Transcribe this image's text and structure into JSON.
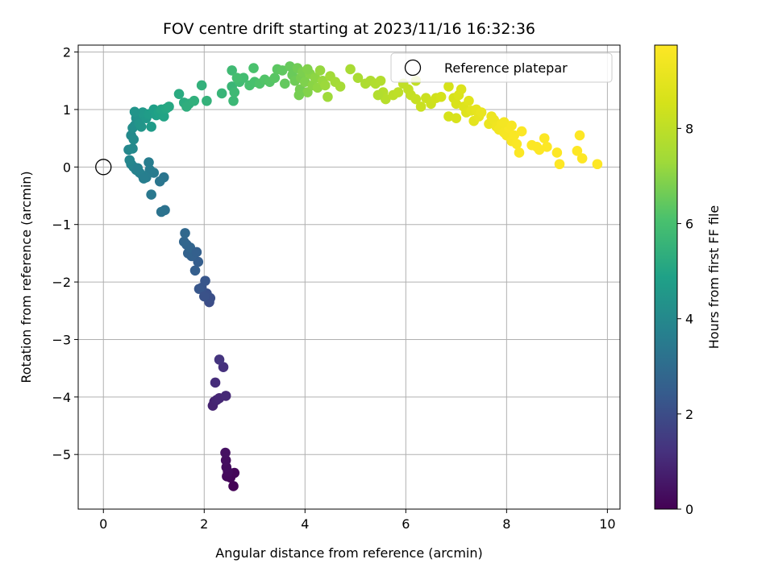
{
  "chart_data": {
    "type": "scatter",
    "title": "FOV centre drift starting at 2023/11/16 16:32:36",
    "xlabel": "Angular distance from reference (arcmin)",
    "ylabel": "Rotation from reference (arcmin)",
    "xlim": [
      -0.5,
      10.25
    ],
    "ylim": [
      -5.95,
      2.12
    ],
    "xticks": [
      0,
      2,
      4,
      6,
      8,
      10
    ],
    "yticks": [
      -5,
      -4,
      -3,
      -2,
      -1,
      0,
      1,
      2
    ],
    "grid": true,
    "colormap": "viridis",
    "colorbar": {
      "label": "Hours from first FF file",
      "range": [
        0,
        9.75
      ],
      "ticks": [
        0,
        2,
        4,
        6,
        8
      ]
    },
    "legend": {
      "placement": "top-right",
      "entries": [
        "Reference platepar"
      ]
    },
    "reference_point": {
      "name": "Reference platepar",
      "x": 0,
      "y": 0
    },
    "series": [
      {
        "points": [
          [
            2.58,
            -5.55,
            0.05
          ],
          [
            2.52,
            -5.4,
            0.12
          ],
          [
            2.6,
            -5.32,
            0.15
          ],
          [
            2.45,
            -5.38,
            0.2
          ],
          [
            2.47,
            -5.3,
            0.25
          ],
          [
            2.44,
            -5.22,
            0.3
          ],
          [
            2.43,
            -5.1,
            0.35
          ],
          [
            2.42,
            -4.97,
            0.4
          ],
          [
            2.2,
            -4.08,
            0.8
          ],
          [
            2.17,
            -4.15,
            0.85
          ],
          [
            2.25,
            -4.05,
            0.9
          ],
          [
            2.3,
            -4.02,
            0.95
          ],
          [
            2.43,
            -3.98,
            1.0
          ],
          [
            2.22,
            -3.75,
            1.1
          ],
          [
            2.38,
            -3.48,
            1.2
          ],
          [
            2.3,
            -3.35,
            1.3
          ],
          [
            2.1,
            -2.35,
            2.0
          ],
          [
            2.12,
            -2.28,
            2.05
          ],
          [
            2.05,
            -2.2,
            2.1
          ],
          [
            1.95,
            -2.1,
            2.2
          ],
          [
            2.02,
            -1.98,
            2.25
          ],
          [
            1.9,
            -2.12,
            2.3
          ],
          [
            2.0,
            -2.25,
            2.15
          ],
          [
            1.88,
            -1.65,
            2.5
          ],
          [
            1.82,
            -1.8,
            2.55
          ],
          [
            1.75,
            -1.55,
            2.6
          ],
          [
            1.68,
            -1.5,
            2.65
          ],
          [
            1.65,
            -1.35,
            2.7
          ],
          [
            1.72,
            -1.4,
            2.75
          ],
          [
            1.6,
            -1.3,
            2.8
          ],
          [
            1.62,
            -1.15,
            2.85
          ],
          [
            1.85,
            -1.48,
            2.58
          ],
          [
            1.22,
            -0.75,
            3.2
          ],
          [
            1.15,
            -0.78,
            3.25
          ],
          [
            1.2,
            -0.18,
            3.3
          ],
          [
            1.12,
            -0.25,
            3.35
          ],
          [
            0.95,
            -0.48,
            3.4
          ],
          [
            1.0,
            -0.1,
            3.5
          ],
          [
            0.92,
            -0.05,
            3.55
          ],
          [
            0.85,
            -0.18,
            3.6
          ],
          [
            0.78,
            -0.15,
            3.65
          ],
          [
            0.72,
            -0.1,
            3.7
          ],
          [
            0.65,
            -0.05,
            3.75
          ],
          [
            0.6,
            0.0,
            3.8
          ],
          [
            0.55,
            0.05,
            3.85
          ],
          [
            0.68,
            -0.02,
            3.72
          ],
          [
            0.9,
            0.08,
            3.58
          ],
          [
            0.8,
            -0.2,
            3.62
          ],
          [
            0.52,
            0.12,
            3.9
          ],
          [
            0.5,
            0.3,
            3.95
          ],
          [
            0.58,
            0.32,
            4.0
          ],
          [
            0.55,
            0.55,
            4.05
          ],
          [
            0.6,
            0.48,
            4.1
          ],
          [
            0.58,
            0.68,
            4.15
          ],
          [
            0.62,
            0.72,
            4.2
          ],
          [
            0.65,
            0.85,
            4.25
          ],
          [
            0.7,
            0.8,
            4.3
          ],
          [
            0.68,
            0.92,
            4.35
          ],
          [
            0.72,
            0.75,
            4.4
          ],
          [
            0.75,
            0.7,
            4.45
          ],
          [
            0.8,
            0.9,
            4.5
          ],
          [
            0.85,
            0.85,
            4.55
          ],
          [
            0.78,
            0.95,
            4.6
          ],
          [
            0.95,
            0.7,
            4.65
          ],
          [
            0.9,
            0.92,
            4.7
          ],
          [
            0.62,
            0.96,
            4.4
          ],
          [
            1.0,
            1.0,
            4.8
          ],
          [
            1.05,
            0.9,
            4.85
          ],
          [
            1.1,
            0.95,
            4.9
          ],
          [
            1.2,
            0.88,
            4.95
          ],
          [
            1.15,
            1.0,
            5.0
          ],
          [
            1.25,
            1.02,
            5.05
          ],
          [
            1.3,
            1.05,
            5.1
          ],
          [
            1.5,
            1.27,
            5.2
          ],
          [
            1.6,
            1.12,
            5.25
          ],
          [
            1.7,
            1.1,
            5.3
          ],
          [
            1.65,
            1.05,
            5.35
          ],
          [
            1.8,
            1.15,
            5.4
          ],
          [
            1.95,
            1.42,
            5.45
          ],
          [
            2.05,
            1.15,
            5.5
          ],
          [
            2.35,
            1.28,
            5.6
          ],
          [
            2.55,
            1.4,
            5.65
          ],
          [
            2.58,
            1.15,
            5.7
          ],
          [
            2.6,
            1.3,
            5.75
          ],
          [
            2.55,
            1.68,
            5.8
          ],
          [
            2.7,
            1.48,
            5.85
          ],
          [
            2.78,
            1.55,
            5.9
          ],
          [
            2.65,
            1.55,
            5.95
          ],
          [
            2.9,
            1.42,
            6.0
          ],
          [
            3.0,
            1.48,
            6.05
          ],
          [
            2.98,
            1.72,
            6.1
          ],
          [
            3.1,
            1.45,
            6.15
          ],
          [
            3.2,
            1.52,
            6.2
          ],
          [
            3.3,
            1.48,
            6.25
          ],
          [
            3.4,
            1.55,
            6.3
          ],
          [
            3.45,
            1.7,
            6.35
          ],
          [
            3.55,
            1.68,
            6.4
          ],
          [
            3.6,
            1.45,
            6.45
          ],
          [
            3.7,
            1.75,
            6.5
          ],
          [
            3.75,
            1.6,
            6.55
          ],
          [
            3.8,
            1.5,
            6.6
          ],
          [
            3.85,
            1.72,
            6.65
          ],
          [
            3.9,
            1.35,
            6.7
          ],
          [
            3.92,
            1.55,
            6.75
          ],
          [
            3.95,
            1.65,
            6.8
          ],
          [
            4.0,
            1.48,
            6.85
          ],
          [
            4.05,
            1.3,
            6.9
          ],
          [
            4.1,
            1.62,
            6.95
          ],
          [
            4.15,
            1.42,
            7.0
          ],
          [
            4.2,
            1.55,
            7.05
          ],
          [
            4.25,
            1.38,
            7.1
          ],
          [
            4.3,
            1.68,
            7.15
          ],
          [
            4.35,
            1.5,
            7.2
          ],
          [
            4.4,
            1.42,
            7.25
          ],
          [
            4.45,
            1.22,
            7.3
          ],
          [
            4.5,
            1.58,
            7.35
          ],
          [
            4.6,
            1.48,
            7.4
          ],
          [
            3.88,
            1.25,
            6.72
          ],
          [
            4.05,
            1.7,
            6.88
          ],
          [
            4.7,
            1.4,
            7.45
          ],
          [
            4.9,
            1.7,
            7.5
          ],
          [
            5.05,
            1.55,
            7.55
          ],
          [
            5.2,
            1.45,
            7.6
          ],
          [
            5.3,
            1.5,
            7.65
          ],
          [
            5.4,
            1.45,
            7.7
          ],
          [
            5.5,
            1.5,
            7.75
          ],
          [
            5.55,
            1.3,
            7.8
          ],
          [
            5.6,
            1.18,
            7.85
          ],
          [
            5.45,
            1.25,
            7.72
          ],
          [
            5.75,
            1.25,
            7.95
          ],
          [
            5.85,
            1.3,
            8.0
          ],
          [
            5.95,
            1.45,
            8.05
          ],
          [
            6.05,
            1.35,
            8.1
          ],
          [
            6.1,
            1.25,
            8.15
          ],
          [
            6.2,
            1.18,
            8.2
          ],
          [
            6.3,
            1.05,
            8.25
          ],
          [
            6.4,
            1.2,
            8.3
          ],
          [
            6.5,
            1.1,
            8.35
          ],
          [
            6.2,
            1.5,
            8.1
          ],
          [
            6.6,
            1.2,
            8.45
          ],
          [
            6.7,
            1.22,
            8.5
          ],
          [
            6.85,
            1.4,
            8.55
          ],
          [
            6.95,
            1.2,
            8.6
          ],
          [
            7.0,
            1.1,
            8.65
          ],
          [
            7.05,
            1.25,
            8.7
          ],
          [
            7.1,
            1.35,
            8.75
          ],
          [
            7.15,
            1.05,
            8.8
          ],
          [
            7.2,
            0.95,
            8.85
          ],
          [
            7.25,
            1.15,
            8.9
          ],
          [
            7.3,
            0.98,
            8.95
          ],
          [
            7.35,
            0.8,
            9.0
          ],
          [
            7.4,
            1.0,
            9.05
          ],
          [
            7.45,
            0.88,
            9.1
          ],
          [
            7.5,
            0.95,
            9.15
          ],
          [
            6.85,
            0.88,
            8.55
          ],
          [
            7.0,
            0.85,
            8.62
          ],
          [
            7.65,
            0.75,
            9.2
          ],
          [
            7.7,
            0.88,
            9.25
          ],
          [
            7.75,
            0.82,
            9.3
          ],
          [
            7.8,
            0.7,
            9.35
          ],
          [
            7.85,
            0.65,
            9.4
          ],
          [
            7.9,
            0.75,
            9.45
          ],
          [
            7.95,
            0.6,
            9.5
          ],
          [
            8.0,
            0.55,
            9.55
          ],
          [
            8.05,
            0.68,
            9.6
          ],
          [
            8.1,
            0.45,
            9.62
          ],
          [
            8.15,
            0.55,
            9.64
          ],
          [
            8.2,
            0.4,
            9.66
          ],
          [
            8.25,
            0.25,
            9.68
          ],
          [
            8.3,
            0.62,
            9.7
          ],
          [
            7.95,
            0.78,
            9.48
          ],
          [
            8.1,
            0.72,
            9.58
          ],
          [
            8.5,
            0.38,
            9.72
          ],
          [
            8.65,
            0.3,
            9.72
          ],
          [
            8.6,
            0.35,
            9.72
          ],
          [
            8.75,
            0.5,
            9.73
          ],
          [
            8.8,
            0.35,
            9.73
          ],
          [
            9.0,
            0.25,
            9.74
          ],
          [
            9.05,
            0.05,
            9.74
          ],
          [
            9.4,
            0.28,
            9.74
          ],
          [
            9.45,
            0.55,
            9.75
          ],
          [
            9.5,
            0.15,
            9.75
          ],
          [
            9.8,
            0.05,
            9.75
          ]
        ]
      }
    ]
  }
}
